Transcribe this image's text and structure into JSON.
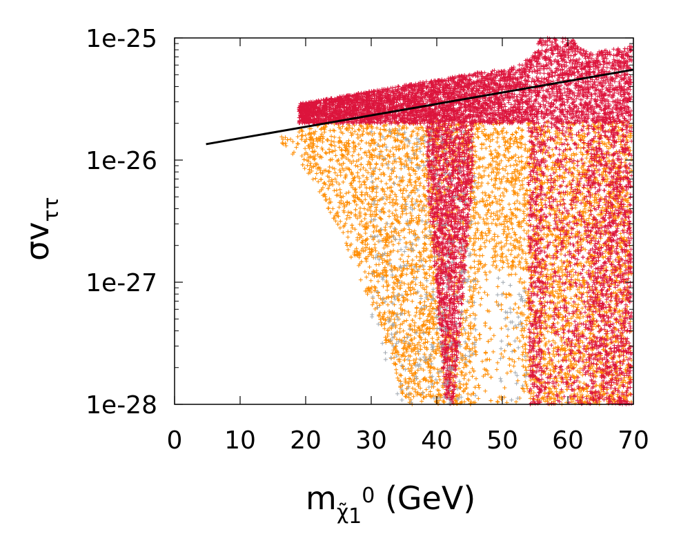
{
  "chart_data": {
    "type": "scatter",
    "title": "",
    "xlabel": {
      "main": "m",
      "subscript": "χ̃",
      "subsub": "1",
      "superscript": "0",
      "unit": "(GeV)"
    },
    "ylabel": {
      "main": "σv",
      "subscript": "ττ"
    },
    "xlim": [
      0,
      70
    ],
    "ylim": [
      1e-28,
      1e-25
    ],
    "yscale": "log",
    "x_ticks": [
      0,
      10,
      20,
      30,
      40,
      50,
      60,
      70
    ],
    "x_tick_labels": [
      "0",
      "10",
      "20",
      "30",
      "40",
      "50",
      "60",
      "70"
    ],
    "y_ticks": [
      1e-28,
      1e-27,
      1e-26,
      1e-25
    ],
    "y_tick_labels": [
      "1e-28",
      "1e-27",
      "1e-26",
      "1e-25"
    ],
    "grid": false,
    "series": [
      {
        "name": "grey points",
        "color": "#a0a8b0",
        "marker": "+",
        "description_regions": [
          {
            "x": [
              33,
              46
            ],
            "y": [
              1e-28,
              1.6e-26
            ]
          },
          {
            "x": [
              50,
              54
            ],
            "y": [
              1e-28,
              3e-27
            ]
          }
        ]
      },
      {
        "name": "crimson points",
        "color": "#dc143c",
        "marker": "+",
        "description_regions": [
          {
            "x": [
              20,
              69.5
            ],
            "y": [
              1.6e-26,
              9.5e-26
            ]
          },
          {
            "x": [
              38,
              45
            ],
            "y": [
              1e-28,
              1.6e-26
            ]
          },
          {
            "x": [
              54,
              69.5
            ],
            "y": [
              1e-28,
              2.2e-26
            ]
          }
        ]
      },
      {
        "name": "orange points",
        "color": "#ff8c00",
        "marker": "+",
        "description_regions": [
          {
            "x": [
              14,
              69.5
            ],
            "y": [
              1e-28,
              2.1e-26
            ]
          }
        ]
      },
      {
        "name": "limit line",
        "type": "line",
        "color": "#000000",
        "x": [
          4.8,
          70
        ],
        "y": [
          1.35e-26,
          5.5e-26
        ]
      }
    ]
  }
}
